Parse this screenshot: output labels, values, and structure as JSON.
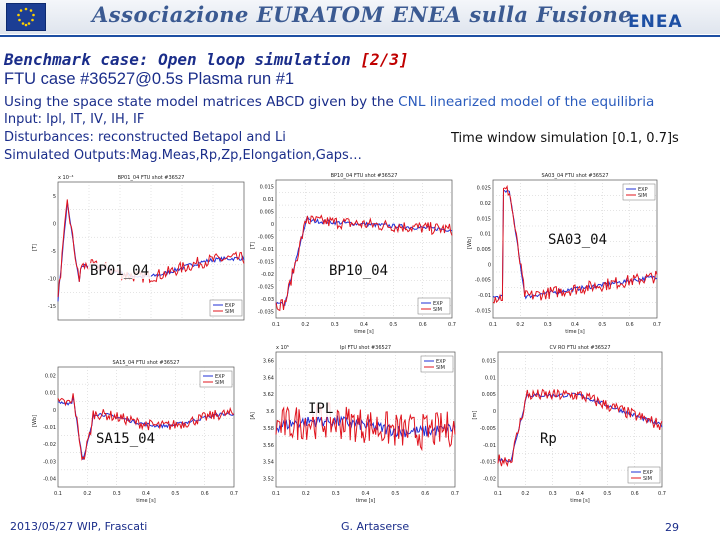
{
  "header": {
    "title": "Associazione EURATOM ENEA sulla Fusione",
    "logo": "ENEA",
    "flag_icon": "eu-flag-icon"
  },
  "slide": {
    "title_prefix": "Benchmark case: Open loop simulation ",
    "title_num": "[2/3]",
    "subtitle": "FTU case #36527@0.5s Plasma run #1",
    "model_pre": "Using the space state model matrices ABCD given by the ",
    "model_hl": "CNL linearized model of the equilibria",
    "input": "Input: Ipl, IT, IV, IH, IF",
    "disturbances": "Disturbances: reconstructed Betapol and Li",
    "outputs": "Simulated Outputs:Mag.Meas,Rp,Zp,Elongation,Gaps…",
    "time_window": "Time window simulation [0.1, 0.7]s"
  },
  "plots": [
    {
      "id": "bp01",
      "label": "BP01_04",
      "title": "BP01_04   FTU shot #36527",
      "scale": "x 10⁻⁴",
      "ylabel": "[T]",
      "ticks_y": [
        "5",
        "0",
        "-5",
        "-10",
        "-15"
      ],
      "ticks_x": [],
      "xlabel": "",
      "legend": [
        "EXP",
        "SIM"
      ]
    },
    {
      "id": "bp10",
      "label": "BP10_04",
      "title": "BP10_04   FTU shot #36527",
      "scale": "",
      "ylabel": "[T]",
      "ticks_y": [
        "0.015",
        "0.01",
        "0.005",
        "0",
        "-0.005",
        "-0.01",
        "-0.015",
        "-0.02",
        "-0.025",
        "-0.03",
        "-0.035"
      ],
      "ticks_x": [
        "0.1",
        "0.2",
        "0.3",
        "0.4",
        "0.5",
        "0.6",
        "0.7"
      ],
      "xlabel": "time [s]",
      "legend": [
        "EXP",
        "SIM"
      ]
    },
    {
      "id": "sa03",
      "label": "SA03_04",
      "title": "SA03_04   FTU shot #36527",
      "scale": "",
      "ylabel": "[Wb]",
      "ticks_y": [
        "0.025",
        "0.02",
        "0.015",
        "0.01",
        "0.005",
        "0",
        "-0.005",
        "-0.01",
        "-0.015"
      ],
      "ticks_x": [
        "0.1",
        "0.2",
        "0.3",
        "0.4",
        "0.5",
        "0.6",
        "0.7"
      ],
      "xlabel": "time [s]",
      "legend": [
        "EXP",
        "SIM"
      ]
    },
    {
      "id": "sa15",
      "label": "SA15_04",
      "title": "SA15_04   FTU shot #36527",
      "scale": "",
      "ylabel": "[Wb]",
      "ticks_y": [
        "0.02",
        "0.01",
        "0",
        "-0.01",
        "-0.02",
        "-0.03",
        "-0.04"
      ],
      "ticks_x": [
        "0.1",
        "0.2",
        "0.3",
        "0.4",
        "0.5",
        "0.6",
        "0.7"
      ],
      "xlabel": "time [s]",
      "legend": [
        "EXP",
        "SIM"
      ]
    },
    {
      "id": "ipl",
      "label": "IPL",
      "title": "Ipl   FTU shot #36527",
      "scale": "x 10⁵",
      "ylabel": "[A]",
      "ticks_y": [
        "3.66",
        "3.64",
        "3.62",
        "3.6",
        "3.58",
        "3.56",
        "3.54",
        "3.52"
      ],
      "ticks_x": [
        "0.1",
        "0.2",
        "0.3",
        "0.4",
        "0.5",
        "0.6",
        "0.7"
      ],
      "xlabel": "time [s]",
      "legend": [
        "EXP",
        "SIM"
      ]
    },
    {
      "id": "rp",
      "label": "Rp",
      "title": "CV RO   FTU shot #36527",
      "scale": "",
      "ylabel": "[m]",
      "ticks_y": [
        "0.015",
        "0.01",
        "0.005",
        "0",
        "-0.005",
        "-0.01",
        "-0.015",
        "-0.02"
      ],
      "ticks_x": [
        "0.1",
        "0.2",
        "0.3",
        "0.4",
        "0.5",
        "0.6",
        "0.7"
      ],
      "xlabel": "time [s]",
      "legend": [
        "EXP",
        "SIM"
      ]
    }
  ],
  "footer": {
    "date": "2013/05/27   WIP, Frascati",
    "author": "G. Artaserse",
    "page": "29"
  },
  "colors": {
    "exp": "#1f2fd6",
    "sim": "#e0141e",
    "text": "#1a2d8a",
    "accent": "#c00000"
  }
}
